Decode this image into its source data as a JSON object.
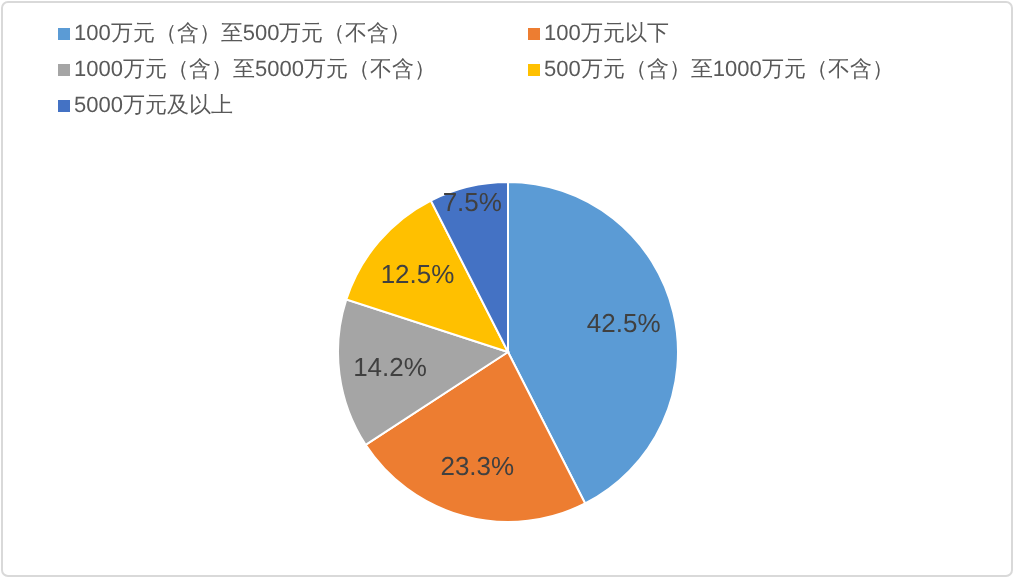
{
  "chart_data": {
    "type": "pie",
    "categories": [
      "100万元（含）至500万元（不含）",
      "100万元以下",
      "1000万元（含）至5000万元（不含）",
      "500万元（含）至1000万元（不含）",
      "5000万元及以上"
    ],
    "values": [
      42.5,
      23.3,
      14.2,
      12.5,
      7.5
    ],
    "colors": [
      "#5b9bd5",
      "#ed7d31",
      "#a5a5a5",
      "#ffc000",
      "#4472c4"
    ],
    "value_labels": [
      "42.5%",
      "23.3%",
      "14.2%",
      "12.5%",
      "7.5%"
    ],
    "legend": "top"
  }
}
